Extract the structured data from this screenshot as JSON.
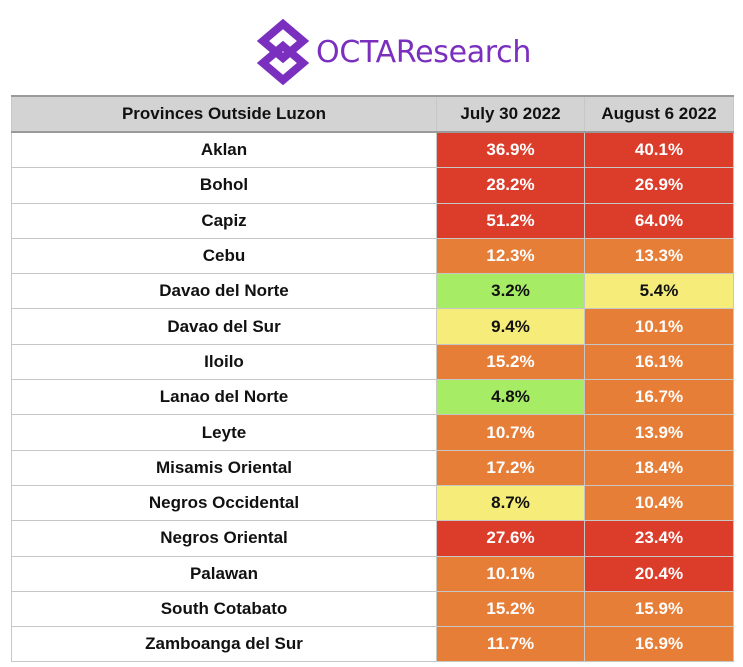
{
  "header": {
    "logo_text": "OCTAResearch"
  },
  "table": {
    "columns": [
      "Provinces Outside Luzon",
      "July 30 2022",
      "August 6 2022"
    ],
    "rows": [
      {
        "province": "Aklan",
        "jul30": "36.9%",
        "aug6": "40.1%",
        "jul30_color": "#dc3c2a",
        "aug6_color": "#dc3c2a"
      },
      {
        "province": "Bohol",
        "jul30": "28.2%",
        "aug6": "26.9%",
        "jul30_color": "#dc3c2a",
        "aug6_color": "#dc3c2a"
      },
      {
        "province": "Capiz",
        "jul30": "51.2%",
        "aug6": "64.0%",
        "jul30_color": "#dc3c2a",
        "aug6_color": "#dc3c2a"
      },
      {
        "province": "Cebu",
        "jul30": "12.3%",
        "aug6": "13.3%",
        "jul30_color": "#e77e37",
        "aug6_color": "#e77e37"
      },
      {
        "province": "Davao del Norte",
        "jul30": "3.2%",
        "aug6": "5.4%",
        "jul30_color": "#a6ec64",
        "aug6_color": "#f6ec7a"
      },
      {
        "province": "Davao del Sur",
        "jul30": "9.4%",
        "aug6": "10.1%",
        "jul30_color": "#f6ec7a",
        "aug6_color": "#e77e37"
      },
      {
        "province": "Iloilo",
        "jul30": "15.2%",
        "aug6": "16.1%",
        "jul30_color": "#e77e37",
        "aug6_color": "#e77e37"
      },
      {
        "province": "Lanao del Norte",
        "jul30": "4.8%",
        "aug6": "16.7%",
        "jul30_color": "#a6ec64",
        "aug6_color": "#e77e37"
      },
      {
        "province": "Leyte",
        "jul30": "10.7%",
        "aug6": "13.9%",
        "jul30_color": "#e77e37",
        "aug6_color": "#e77e37"
      },
      {
        "province": "Misamis Oriental",
        "jul30": "17.2%",
        "aug6": "18.4%",
        "jul30_color": "#e77e37",
        "aug6_color": "#e77e37"
      },
      {
        "province": "Negros Occidental",
        "jul30": "8.7%",
        "aug6": "10.4%",
        "jul30_color": "#f6ec7a",
        "aug6_color": "#e77e37"
      },
      {
        "province": "Negros Oriental",
        "jul30": "27.6%",
        "aug6": "23.4%",
        "jul30_color": "#dc3c2a",
        "aug6_color": "#dc3c2a"
      },
      {
        "province": "Palawan",
        "jul30": "10.1%",
        "aug6": "20.4%",
        "jul30_color": "#e77e37",
        "aug6_color": "#dc3c2a"
      },
      {
        "province": "South Cotabato",
        "jul30": "15.2%",
        "aug6": "15.9%",
        "jul30_color": "#e77e37",
        "aug6_color": "#e77e37"
      },
      {
        "province": "Zamboanga del Sur",
        "jul30": "11.7%",
        "aug6": "16.9%",
        "jul30_color": "#e77e37",
        "aug6_color": "#e77e37"
      }
    ]
  }
}
